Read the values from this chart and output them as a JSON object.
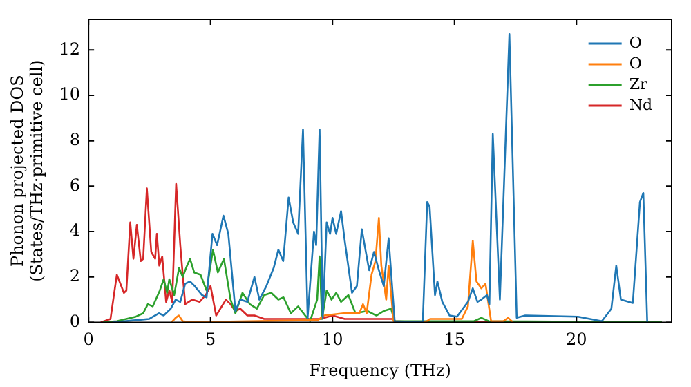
{
  "chart_data": {
    "type": "line",
    "xlabel": "Frequency (THz)",
    "ylabel": "Phonon projected DOS\n(States/THz·primitive cell)",
    "xlim": [
      0,
      23.9
    ],
    "ylim": [
      0,
      13.35
    ],
    "xticks": [
      0,
      5,
      10,
      15,
      20
    ],
    "yticks": [
      0,
      2,
      4,
      6,
      8,
      10,
      12
    ],
    "grid": false,
    "legend": "top right",
    "marker": "none",
    "line_style": "solid",
    "series": [
      {
        "name": "O",
        "color": "#1f77b4",
        "x": [
          1,
          2,
          2.49,
          2.88,
          3.08,
          3.37,
          3.57,
          3.76,
          3.96,
          4.16,
          4.35,
          4.65,
          4.84,
          5.08,
          5.27,
          5.53,
          5.73,
          6.02,
          6.22,
          6.51,
          6.8,
          7.0,
          7.29,
          7.59,
          7.78,
          7.98,
          8.2,
          8.39,
          8.59,
          8.79,
          8.98,
          9.24,
          9.33,
          9.47,
          9.6,
          9.76,
          9.9,
          10.0,
          10.15,
          10.35,
          10.5,
          10.8,
          11.0,
          11.2,
          11.5,
          11.7,
          11.9,
          12.1,
          12.3,
          12.55,
          13.7,
          13.88,
          13.98,
          14.2,
          14.3,
          14.5,
          14.8,
          15.1,
          15.55,
          15.75,
          15.94,
          16.1,
          16.33,
          16.43,
          16.57,
          16.86,
          17.25,
          17.55,
          17.9,
          20.06,
          21.04,
          21.43,
          21.63,
          21.82,
          22.31,
          22.6,
          22.74,
          22.9
        ],
        "values": [
          0,
          0.1,
          0.15,
          0.4,
          0.3,
          0.6,
          1.0,
          0.9,
          1.7,
          1.8,
          1.6,
          1.2,
          1.1,
          3.9,
          3.4,
          4.7,
          3.9,
          0.5,
          1.0,
          0.9,
          2.0,
          1.0,
          1.6,
          2.4,
          3.2,
          2.7,
          5.5,
          4.4,
          3.9,
          8.5,
          0.2,
          4.0,
          3.4,
          8.5,
          0.2,
          4.4,
          3.9,
          4.6,
          3.9,
          4.9,
          3.6,
          1.3,
          1.6,
          4.1,
          2.3,
          3.1,
          2.3,
          1.6,
          3.7,
          0.05,
          0,
          5.3,
          5.1,
          1.2,
          1.8,
          0.9,
          0.3,
          0.25,
          0.9,
          1.5,
          0.9,
          1.0,
          1.2,
          0.8,
          8.3,
          1.0,
          12.7,
          0.2,
          0.3,
          0.25,
          0.05,
          0.6,
          2.5,
          1.0,
          0.85,
          5.3,
          5.7,
          0
        ]
      },
      {
        "name": "O",
        "color": "#ff7f0e",
        "x": [
          3.4,
          3.57,
          3.7,
          3.86,
          4.2,
          9.4,
          9.66,
          10.45,
          11.1,
          11.25,
          11.4,
          11.6,
          11.76,
          11.9,
          12.0,
          12.2,
          12.3,
          12.5,
          13.8,
          14.0,
          15.3,
          15.55,
          15.75,
          15.9,
          16.1,
          16.27,
          16.5,
          17.0,
          17.2,
          17.4
        ],
        "values": [
          0,
          0.2,
          0.3,
          0.05,
          0,
          0.1,
          0.3,
          0.4,
          0.4,
          0.8,
          0.4,
          2.1,
          2.7,
          4.6,
          2.5,
          1.0,
          2.5,
          0.05,
          0,
          0.15,
          0.15,
          0.7,
          3.6,
          1.8,
          1.5,
          1.7,
          0.05,
          0.05,
          0.2,
          0
        ]
      },
      {
        "name": "Zr",
        "color": "#2ca02c",
        "x": [
          0.6,
          1.16,
          1.94,
          2.24,
          2.43,
          2.63,
          2.92,
          3.08,
          3.22,
          3.31,
          3.51,
          3.71,
          3.86,
          4.0,
          4.16,
          4.33,
          4.59,
          4.84,
          5.1,
          5.3,
          5.55,
          5.82,
          6.02,
          6.31,
          6.61,
          6.9,
          7.2,
          7.49,
          7.78,
          7.99,
          8.29,
          8.59,
          8.88,
          9.08,
          9.37,
          9.47,
          9.57,
          9.76,
          9.96,
          10.15,
          10.35,
          10.65,
          10.94,
          11.43,
          11.8,
          12.1,
          12.4,
          12.55,
          15.8,
          16.1,
          16.4,
          23.5
        ],
        "values": [
          0,
          0.05,
          0.25,
          0.4,
          0.8,
          0.7,
          1.4,
          1.9,
          1.3,
          1.9,
          1.2,
          2.4,
          2.0,
          2.4,
          2.8,
          2.2,
          2.1,
          1.4,
          3.2,
          2.2,
          2.8,
          1.0,
          0.4,
          1.3,
          0.8,
          0.6,
          1.2,
          1.3,
          1.0,
          1.1,
          0.4,
          0.7,
          0.3,
          0.05,
          1.0,
          2.9,
          0.15,
          1.4,
          1.0,
          1.3,
          0.9,
          1.2,
          0.4,
          0.5,
          0.3,
          0.5,
          0.6,
          0.05,
          0.05,
          0.2,
          0.05,
          0
        ]
      },
      {
        "name": "Nd",
        "color": "#d62728",
        "x": [
          0.5,
          0.9,
          1.16,
          1.45,
          1.55,
          1.71,
          1.84,
          1.98,
          2.14,
          2.24,
          2.39,
          2.57,
          2.73,
          2.8,
          2.9,
          3.02,
          3.18,
          3.31,
          3.43,
          3.59,
          3.76,
          3.96,
          4.25,
          4.55,
          4.8,
          5.0,
          5.23,
          5.63,
          5.82,
          6.02,
          6.22,
          6.51,
          6.8,
          7.2,
          9.5,
          10.0,
          10.5,
          12.5,
          12.6,
          23.5
        ],
        "values": [
          0,
          0.15,
          2.1,
          1.3,
          1.4,
          4.4,
          2.8,
          4.3,
          2.7,
          2.8,
          5.9,
          3.1,
          2.8,
          3.9,
          2.5,
          2.9,
          0.9,
          1.4,
          0.9,
          6.1,
          3.4,
          0.8,
          1.0,
          0.9,
          1.2,
          1.6,
          0.3,
          1.0,
          0.8,
          0.5,
          0.6,
          0.3,
          0.3,
          0.15,
          0.15,
          0.3,
          0.15,
          0.15,
          0,
          0
        ]
      }
    ]
  }
}
